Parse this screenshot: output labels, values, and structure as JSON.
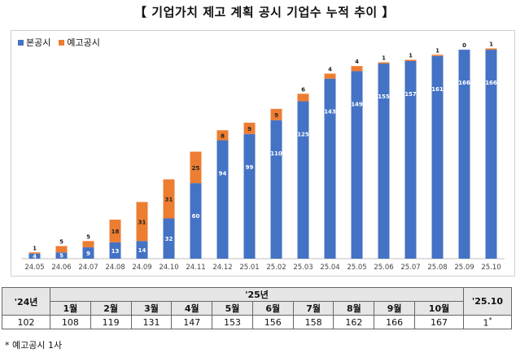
{
  "title": "【 기업가치 제고 계획 공시 기업수 누적 추이 】",
  "chart_data": {
    "type": "bar",
    "stacked": true,
    "categories": [
      "24.05",
      "24.06",
      "24.07",
      "24.08",
      "24.09",
      "24.10",
      "24.11",
      "24.12",
      "25.01",
      "25.02",
      "25.03",
      "25.04",
      "25.05",
      "25.06",
      "25.07",
      "25.08",
      "25.09",
      "25.10"
    ],
    "series": [
      {
        "name": "본공시",
        "color": "#4472c4",
        "values": [
          4,
          5,
          9,
          13,
          14,
          32,
          60,
          94,
          99,
          110,
          125,
          143,
          149,
          155,
          157,
          161,
          166,
          166
        ]
      },
      {
        "name": "예고공시",
        "color": "#ed7d31",
        "values": [
          1,
          5,
          5,
          18,
          31,
          31,
          25,
          8,
          9,
          9,
          6,
          4,
          4,
          1,
          1,
          1,
          0,
          1
        ]
      }
    ],
    "ylim": [
      0,
      168
    ],
    "legend": "top-left",
    "grid": false
  },
  "table": {
    "corner": "'24년",
    "year_header": "'25년",
    "last_header": "'25.10",
    "months": [
      "1월",
      "2월",
      "3월",
      "4월",
      "5월",
      "6월",
      "7월",
      "8월",
      "9월",
      "10월"
    ],
    "first_value": "102",
    "values": [
      "108",
      "119",
      "131",
      "147",
      "153",
      "156",
      "158",
      "162",
      "166",
      "167"
    ],
    "last_value": "1",
    "last_mark": "*"
  },
  "footnote": "* 예고공시 1사"
}
